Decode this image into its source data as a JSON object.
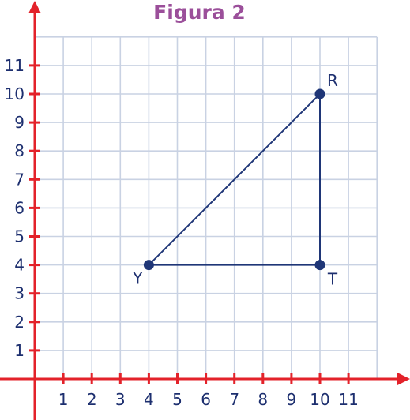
{
  "figure": {
    "title": "Figura 2"
  },
  "colors": {
    "title": "#9b4f9a",
    "axes": "#e3222a",
    "grid": "#c9d2e3",
    "shape": "#1f3677",
    "labels": "#1d2f6f"
  },
  "axes": {
    "x_ticks": [
      "1",
      "2",
      "3",
      "4",
      "5",
      "6",
      "7",
      "8",
      "9",
      "10",
      "11"
    ],
    "y_ticks": [
      "1",
      "2",
      "3",
      "4",
      "5",
      "6",
      "7",
      "8",
      "9",
      "10",
      "11"
    ],
    "range": [
      0,
      11
    ]
  },
  "triangle": {
    "vertices": [
      {
        "label": "R",
        "x": 10,
        "y": 10
      },
      {
        "label": "T",
        "x": 10,
        "y": 4
      },
      {
        "label": "Y",
        "x": 4,
        "y": 4
      }
    ]
  }
}
